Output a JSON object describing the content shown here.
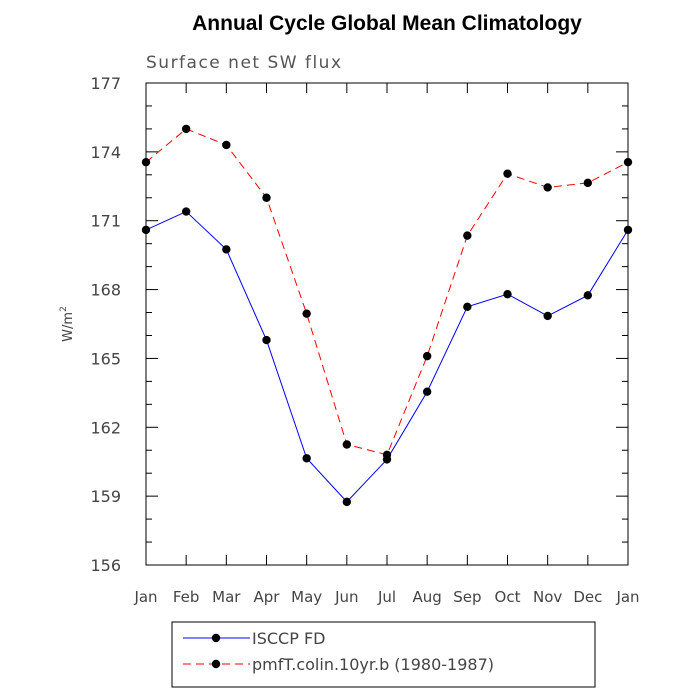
{
  "chart_data": {
    "type": "line",
    "title": "Annual Cycle Global Mean Climatology",
    "subtitle": "Surface net SW flux",
    "xlabel": "",
    "ylabel": "W/m",
    "ylabel_superscript": "2",
    "categories": [
      "Jan",
      "Feb",
      "Mar",
      "Apr",
      "May",
      "Jun",
      "Jul",
      "Aug",
      "Sep",
      "Oct",
      "Nov",
      "Dec",
      "Jan"
    ],
    "yticks": [
      156,
      159,
      162,
      165,
      168,
      171,
      174,
      177
    ],
    "ylim": [
      156,
      177
    ],
    "series": [
      {
        "name": "ISCCP FD",
        "color": "#0000ff",
        "dash": "solid",
        "values": [
          170.6,
          171.4,
          169.75,
          165.8,
          160.65,
          158.75,
          160.6,
          163.55,
          167.25,
          167.8,
          166.85,
          167.75,
          170.6
        ]
      },
      {
        "name": "pmfT.colin.10yr.b (1980-1987)",
        "color": "#ff0000",
        "dash": "dashed",
        "values": [
          173.55,
          175.0,
          174.3,
          172.0,
          166.95,
          161.25,
          160.8,
          165.1,
          170.35,
          173.05,
          172.45,
          172.65,
          173.55
        ]
      }
    ],
    "legend_position": "bottom",
    "grid": false
  }
}
